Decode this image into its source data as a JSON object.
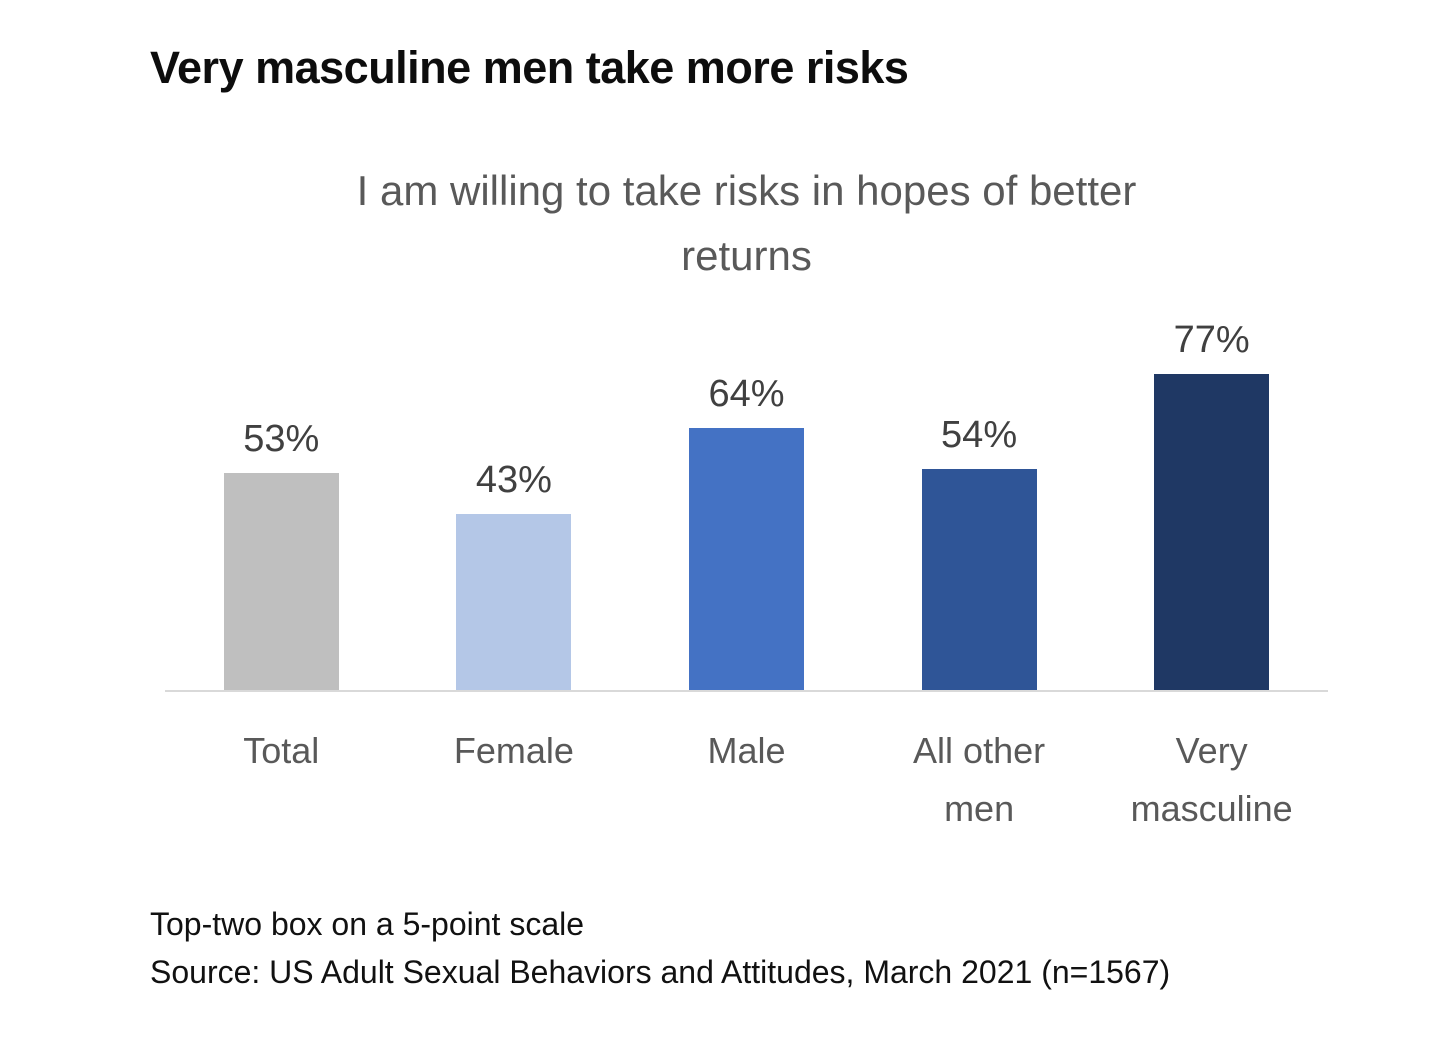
{
  "header": {
    "title": "Very masculine men take more risks"
  },
  "chart_data": {
    "type": "bar",
    "title": "I am willing to take risks in hopes of better returns",
    "categories": [
      "Total",
      "Female",
      "Male",
      "All other men",
      "Very masculine"
    ],
    "values": [
      53,
      43,
      64,
      54,
      77
    ],
    "value_labels": [
      "53%",
      "43%",
      "64%",
      "54%",
      "77%"
    ],
    "bar_colors": [
      "#BFBFBF",
      "#B4C7E7",
      "#4472C4",
      "#2F5597",
      "#1F3864"
    ],
    "ylim": [
      0,
      95
    ],
    "grid": false,
    "legend": false,
    "axis_line_color": "#D9D9D9",
    "value_label_color": "#404040",
    "category_label_color": "#595959",
    "subtitle_color": "#595959"
  },
  "footer": {
    "note": "Top-two box on a 5-point scale",
    "source": "Source: US Adult Sexual Behaviors and Attitudes, March 2021 (n=1567)"
  }
}
